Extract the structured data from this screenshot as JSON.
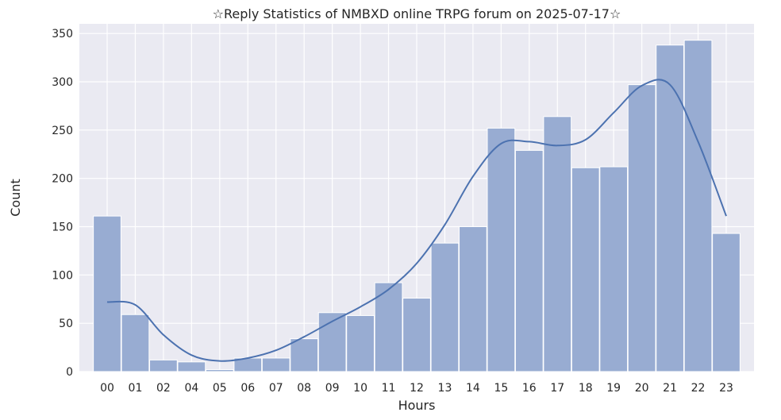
{
  "chart_data": {
    "type": "bar",
    "title": "☆Reply Statistics of NMBXD online TRPG forum on 2025-07-17☆",
    "xlabel": "Hours",
    "ylabel": "Count",
    "categories": [
      "00",
      "01",
      "02",
      "04",
      "05",
      "06",
      "07",
      "08",
      "09",
      "10",
      "11",
      "12",
      "13",
      "14",
      "15",
      "16",
      "17",
      "18",
      "19",
      "20",
      "21",
      "22",
      "23"
    ],
    "values": [
      161,
      59,
      12,
      10,
      2,
      14,
      14,
      34,
      61,
      58,
      92,
      76,
      133,
      150,
      252,
      229,
      264,
      211,
      212,
      297,
      338,
      343,
      143
    ],
    "kde_curve": {
      "x": [
        "00",
        "01",
        "02",
        "04",
        "05",
        "06",
        "07",
        "08",
        "09",
        "10",
        "11",
        "12",
        "13",
        "14",
        "15",
        "16",
        "17",
        "18",
        "19",
        "20",
        "21",
        "22",
        "23"
      ],
      "y": [
        72,
        69,
        38,
        17,
        11,
        14,
        22,
        36,
        52,
        67,
        85,
        112,
        152,
        202,
        236,
        238,
        234,
        240,
        268,
        296,
        297,
        238,
        161
      ]
    },
    "ylim": [
      0,
      360
    ],
    "yticks": [
      0,
      50,
      100,
      150,
      200,
      250,
      300,
      350
    ],
    "grid": true,
    "colors": {
      "bar_fill": "#98acd2",
      "bar_stroke": "#ffffff",
      "line": "#4c72b0",
      "background": "#eaeaf2",
      "grid": "#ffffff"
    }
  }
}
